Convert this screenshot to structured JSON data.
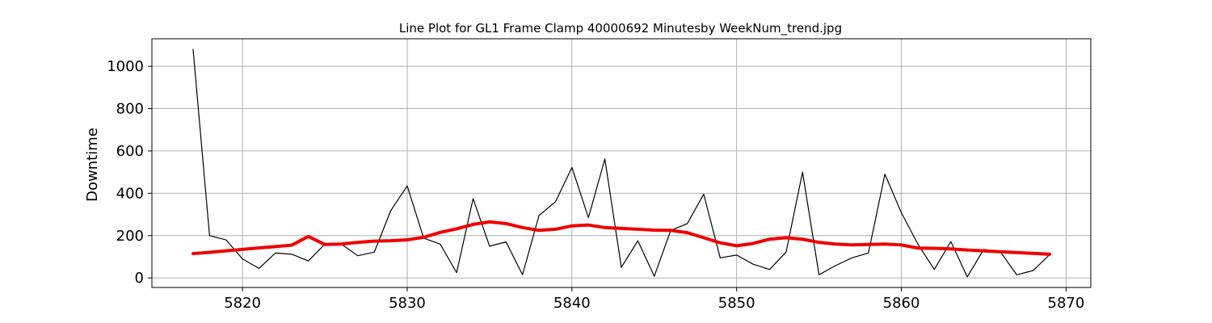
{
  "chart_data": {
    "type": "line",
    "title": "Line Plot for GL1 Frame Clamp 40000692 Minutesby WeekNum_trend.jpg",
    "xlabel": "",
    "ylabel": "Downtime",
    "xlim": [
      5814.5,
      5871.5
    ],
    "ylim": [
      -45,
      1130
    ],
    "xticks": [
      5820,
      5830,
      5840,
      5850,
      5860,
      5870
    ],
    "yticks": [
      0,
      200,
      400,
      600,
      800,
      1000
    ],
    "grid": true,
    "legend": "none",
    "x": [
      5817,
      5818,
      5819,
      5820,
      5821,
      5822,
      5823,
      5824,
      5825,
      5826,
      5827,
      5828,
      5829,
      5830,
      5831,
      5832,
      5833,
      5834,
      5835,
      5836,
      5837,
      5838,
      5839,
      5840,
      5841,
      5842,
      5843,
      5844,
      5845,
      5846,
      5847,
      5848,
      5849,
      5850,
      5851,
      5852,
      5853,
      5854,
      5855,
      5856,
      5857,
      5858,
      5859,
      5860,
      5861,
      5862,
      5863,
      5864,
      5865,
      5866,
      5867,
      5868,
      5869
    ],
    "series": [
      {
        "color": "#000000",
        "stroke": 1.2,
        "values": [
          1080,
          200,
          180,
          90,
          45,
          118,
          112,
          80,
          160,
          160,
          105,
          122,
          318,
          435,
          188,
          160,
          25,
          375,
          150,
          170,
          15,
          295,
          360,
          522,
          285,
          562,
          50,
          176,
          8,
          225,
          256,
          396,
          95,
          108,
          65,
          40,
          122,
          500,
          15,
          58,
          95,
          118,
          490,
          308,
          160,
          40,
          172,
          5,
          135,
          125,
          15,
          35,
          110
        ]
      },
      {
        "color": "#ee0000",
        "stroke": 4,
        "values": [
          115,
          121,
          128,
          135,
          142,
          148,
          155,
          196,
          158,
          160,
          168,
          174,
          176,
          180,
          192,
          215,
          232,
          253,
          265,
          257,
          238,
          225,
          230,
          246,
          250,
          238,
          234,
          230,
          226,
          225,
          214,
          190,
          166,
          152,
          163,
          183,
          190,
          183,
          168,
          160,
          156,
          158,
          160,
          156,
          141,
          140,
          137,
          132,
          128,
          124,
          120,
          116,
          112
        ]
      }
    ]
  }
}
